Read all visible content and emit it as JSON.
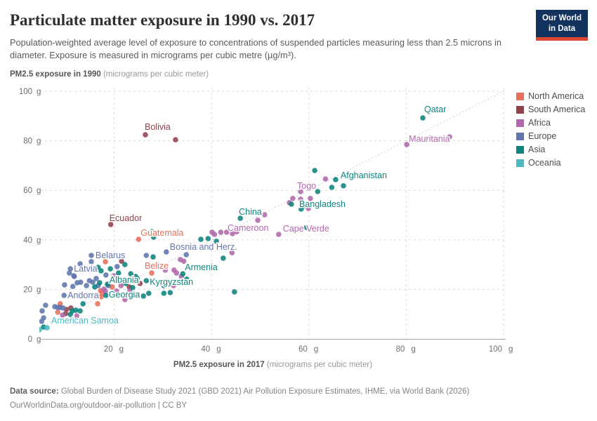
{
  "header": {
    "title": "Particulate matter exposure in 1990 vs. 2017",
    "subtitle": "Population-weighted average level of exposure to concentrations of suspended particles measuring less than 2.5 microns in diameter. Exposure is measured in micrograms per cubic metre (µg/m³).",
    "logo_line1": "Our World",
    "logo_line2": "in Data"
  },
  "legend": {
    "items": [
      {
        "label": "North America",
        "color": "#e6705c"
      },
      {
        "label": "South America",
        "color": "#93424c"
      },
      {
        "label": "Africa",
        "color": "#b168ac"
      },
      {
        "label": "Europe",
        "color": "#6076ad"
      },
      {
        "label": "Asia",
        "color": "#0e847d"
      },
      {
        "label": "Oceania",
        "color": "#4cb8c0"
      }
    ]
  },
  "footer": {
    "source_label": "Data source:",
    "source_text": " Global Burden of Disease Study 2021 (GBD 2021) Air Pollution Exposure Estimates, IHME, via World Bank (2026)",
    "link": "OurWorldinData.org/outdoor-air-pollution",
    "separator": " | ",
    "license": "CC BY"
  },
  "chart_data": {
    "type": "scatter",
    "x_axis": {
      "title_bold": "PM2.5 exposure in 2017",
      "title_light": " (micrograms per cubic meter)",
      "ticks": [
        20,
        40,
        60,
        80,
        100
      ],
      "tick_unit": "g",
      "range": [
        4.6,
        100.4
      ]
    },
    "y_axis": {
      "title_bold": "PM2.5 exposure in 1990",
      "title_light": " (micrograms per cubic meter)",
      "ticks": [
        0,
        20,
        40,
        60,
        80,
        100
      ],
      "tick_unit": "g",
      "range": [
        0,
        100
      ]
    },
    "identity_line": true,
    "series": [
      {
        "name": "North America",
        "color": "#e6705c",
        "points": [
          {
            "x": 25.0,
            "y": 40.2,
            "label": "Guatemala",
            "dx": 3,
            "dy": -5
          },
          {
            "x": 27.7,
            "y": 26.6,
            "label": "Belize",
            "dx": -10,
            "dy": -6
          },
          {
            "x": 18.2,
            "y": 31.2
          },
          {
            "x": 17.2,
            "y": 19.5
          },
          {
            "x": 19.6,
            "y": 21.0
          },
          {
            "x": 17.5,
            "y": 18.7
          },
          {
            "x": 17.3,
            "y": 17.0
          },
          {
            "x": 16.6,
            "y": 14.2
          },
          {
            "x": 8.4,
            "y": 10.8
          },
          {
            "x": 8.9,
            "y": 14.2
          }
        ]
      },
      {
        "name": "South America",
        "color": "#93424c",
        "points": [
          {
            "x": 26.4,
            "y": 82.4,
            "label": "Bolivia",
            "dx": -1,
            "dy": -7
          },
          {
            "x": 32.6,
            "y": 80.4
          },
          {
            "x": 19.3,
            "y": 46.2,
            "label": "Ecuador",
            "dx": -2,
            "dy": -5
          },
          {
            "x": 21.5,
            "y": 31.4
          },
          {
            "x": 25.3,
            "y": 22.4
          },
          {
            "x": 23.1,
            "y": 21.0
          },
          {
            "x": 10.2,
            "y": 11.9
          },
          {
            "x": 11.1,
            "y": 12.5
          },
          {
            "x": 10.0,
            "y": 10.2
          }
        ]
      },
      {
        "name": "Africa",
        "color": "#b168ac",
        "points": [
          {
            "x": 80.1,
            "y": 78.5,
            "label": "Mauritania",
            "dx": 3,
            "dy": -4
          },
          {
            "x": 88.9,
            "y": 81.6
          },
          {
            "x": 63.4,
            "y": 64.6
          },
          {
            "x": 58.3,
            "y": 59.5,
            "label": "Togo",
            "dx": -5,
            "dy": -4
          },
          {
            "x": 56.7,
            "y": 56.7
          },
          {
            "x": 58.3,
            "y": 56.4
          },
          {
            "x": 60.3,
            "y": 56.7
          },
          {
            "x": 56.0,
            "y": 55.0
          },
          {
            "x": 59.9,
            "y": 52.7
          },
          {
            "x": 50.9,
            "y": 50.1
          },
          {
            "x": 49.5,
            "y": 47.9
          },
          {
            "x": 53.8,
            "y": 42.2,
            "label": "Cape Verde",
            "dx": 6,
            "dy": -4
          },
          {
            "x": 43.1,
            "y": 43.1
          },
          {
            "x": 44.3,
            "y": 42.5,
            "label": "Cameroon",
            "dx": -7,
            "dy": -4
          },
          {
            "x": 41.9,
            "y": 43.1
          },
          {
            "x": 40.6,
            "y": 42.2
          },
          {
            "x": 40.1,
            "y": 43.1
          },
          {
            "x": 45.2,
            "y": 43.3
          },
          {
            "x": 44.2,
            "y": 34.8
          },
          {
            "x": 33.6,
            "y": 32.0
          },
          {
            "x": 34.3,
            "y": 31.4
          },
          {
            "x": 32.3,
            "y": 27.8
          },
          {
            "x": 30.5,
            "y": 27.8
          },
          {
            "x": 32.8,
            "y": 26.6
          },
          {
            "x": 33.8,
            "y": 25.2
          },
          {
            "x": 23.2,
            "y": 19.5
          },
          {
            "x": 19.9,
            "y": 25.5
          },
          {
            "x": 17.9,
            "y": 20.1
          },
          {
            "x": 21.4,
            "y": 21.5
          },
          {
            "x": 20.5,
            "y": 19.3
          },
          {
            "x": 22.2,
            "y": 15.9
          },
          {
            "x": 18.2,
            "y": 19.3
          },
          {
            "x": 32.2,
            "y": 21.5
          },
          {
            "x": 9.4,
            "y": 9.6
          },
          {
            "x": 12.3,
            "y": 9.3
          }
        ]
      },
      {
        "name": "Europe",
        "color": "#6076ad",
        "points": [
          {
            "x": 30.7,
            "y": 35.1,
            "label": "Bosnia and Herz.",
            "dx": 5,
            "dy": -3
          },
          {
            "x": 26.6,
            "y": 33.7
          },
          {
            "x": 34.8,
            "y": 34.0
          },
          {
            "x": 15.3,
            "y": 33.7,
            "label": "Belarus",
            "dx": 6,
            "dy": 4
          },
          {
            "x": 13.0,
            "y": 30.3
          },
          {
            "x": 11.0,
            "y": 28.3,
            "label": "Latvia",
            "dx": 5,
            "dy": 4
          },
          {
            "x": 18.3,
            "y": 25.8
          },
          {
            "x": 20.6,
            "y": 29.2
          },
          {
            "x": 15.3,
            "y": 31.2
          },
          {
            "x": 10.8,
            "y": 26.6
          },
          {
            "x": 11.7,
            "y": 25.5
          },
          {
            "x": 15.6,
            "y": 22.9
          },
          {
            "x": 14.3,
            "y": 21.5
          },
          {
            "x": 24.1,
            "y": 23.2
          },
          {
            "x": 11.8,
            "y": 25.2
          },
          {
            "x": 9.7,
            "y": 17.6,
            "label": "Andorra",
            "dx": 5,
            "dy": 4
          },
          {
            "x": 9.8,
            "y": 21.8
          },
          {
            "x": 12.4,
            "y": 22.7
          },
          {
            "x": 13.1,
            "y": 22.9
          },
          {
            "x": 11.5,
            "y": 21.2
          },
          {
            "x": 14.9,
            "y": 23.5
          },
          {
            "x": 16.3,
            "y": 24.4
          },
          {
            "x": 16.7,
            "y": 21.5
          },
          {
            "x": 18.8,
            "y": 21.5
          },
          {
            "x": 5.9,
            "y": 13.6
          },
          {
            "x": 5.2,
            "y": 11.3
          },
          {
            "x": 7.8,
            "y": 13.0
          },
          {
            "x": 8.4,
            "y": 12.7
          },
          {
            "x": 8.9,
            "y": 12.7
          },
          {
            "x": 9.5,
            "y": 12.5
          },
          {
            "x": 5.5,
            "y": 8.5
          },
          {
            "x": 5.1,
            "y": 7.1
          }
        ]
      },
      {
        "name": "Asia",
        "color": "#0e847d",
        "points": [
          {
            "x": 83.4,
            "y": 89.2,
            "label": "Qatar",
            "dx": 2,
            "dy": -8
          },
          {
            "x": 61.2,
            "y": 68.0
          },
          {
            "x": 65.5,
            "y": 64.3,
            "label": "Afghanistan",
            "dx": 7,
            "dy": -2
          },
          {
            "x": 67.1,
            "y": 61.8
          },
          {
            "x": 64.7,
            "y": 61.2
          },
          {
            "x": 61.8,
            "y": 59.5
          },
          {
            "x": 58.7,
            "y": 53.5
          },
          {
            "x": 64.5,
            "y": 54.1,
            "label": "Bangladesh",
            "dx": 21,
            "dy": 3,
            "anchor": "end"
          },
          {
            "x": 58.4,
            "y": 52.4
          },
          {
            "x": 56.4,
            "y": 54.4
          },
          {
            "x": 45.9,
            "y": 48.7,
            "label": "China",
            "dx": -2,
            "dy": -5
          },
          {
            "x": 59.5,
            "y": 45.0
          },
          {
            "x": 39.3,
            "y": 40.5
          },
          {
            "x": 37.8,
            "y": 40.2
          },
          {
            "x": 41.0,
            "y": 39.4
          },
          {
            "x": 27.7,
            "y": 43.3
          },
          {
            "x": 28.1,
            "y": 41.1
          },
          {
            "x": 42.4,
            "y": 32.6,
            "label": "Armenia",
            "dx": -8,
            "dy": 17,
            "anchor": "end"
          },
          {
            "x": 34.1,
            "y": 26.3
          },
          {
            "x": 34.9,
            "y": 24.1
          },
          {
            "x": 31.5,
            "y": 18.7
          },
          {
            "x": 44.7,
            "y": 19.0
          },
          {
            "x": 24.7,
            "y": 24.4
          },
          {
            "x": 26.6,
            "y": 23.5,
            "label": "Kyrgyzstan",
            "dx": 5,
            "dy": 6
          },
          {
            "x": 23.8,
            "y": 20.7
          },
          {
            "x": 26.0,
            "y": 17.3
          },
          {
            "x": 27.1,
            "y": 18.4
          },
          {
            "x": 30.2,
            "y": 21.5
          },
          {
            "x": 30.2,
            "y": 18.4
          },
          {
            "x": 28.0,
            "y": 33.1
          },
          {
            "x": 16.7,
            "y": 28.9
          },
          {
            "x": 17.3,
            "y": 27.5
          },
          {
            "x": 19.2,
            "y": 28.3
          },
          {
            "x": 20.9,
            "y": 26.6
          },
          {
            "x": 22.2,
            "y": 30.0
          },
          {
            "x": 17.0,
            "y": 22.7
          },
          {
            "x": 16.0,
            "y": 21.0
          },
          {
            "x": 22.4,
            "y": 22.4
          },
          {
            "x": 18.6,
            "y": 22.1,
            "label": "Albania",
            "dx": 3,
            "dy": -2
          },
          {
            "x": 18.3,
            "y": 17.6,
            "label": "Georgia",
            "dx": 4,
            "dy": 3
          },
          {
            "x": 24.4,
            "y": 25.2
          },
          {
            "x": 23.4,
            "y": 26.3
          },
          {
            "x": 11.4,
            "y": 11.3
          },
          {
            "x": 12.1,
            "y": 11.6
          },
          {
            "x": 13.6,
            "y": 14.2
          },
          {
            "x": 13.0,
            "y": 11.3
          },
          {
            "x": 5.5,
            "y": 4.8
          },
          {
            "x": 11.0,
            "y": 9.9
          }
        ]
      },
      {
        "name": "Oceania",
        "color": "#4cb8c0",
        "points": [
          {
            "x": 6.2,
            "y": 4.5,
            "label": "American Samoa",
            "dx": 6,
            "dy": -6
          },
          {
            "x": 4.6,
            "y": 3.7
          },
          {
            "x": 11.3,
            "y": 8.2
          }
        ]
      }
    ]
  }
}
